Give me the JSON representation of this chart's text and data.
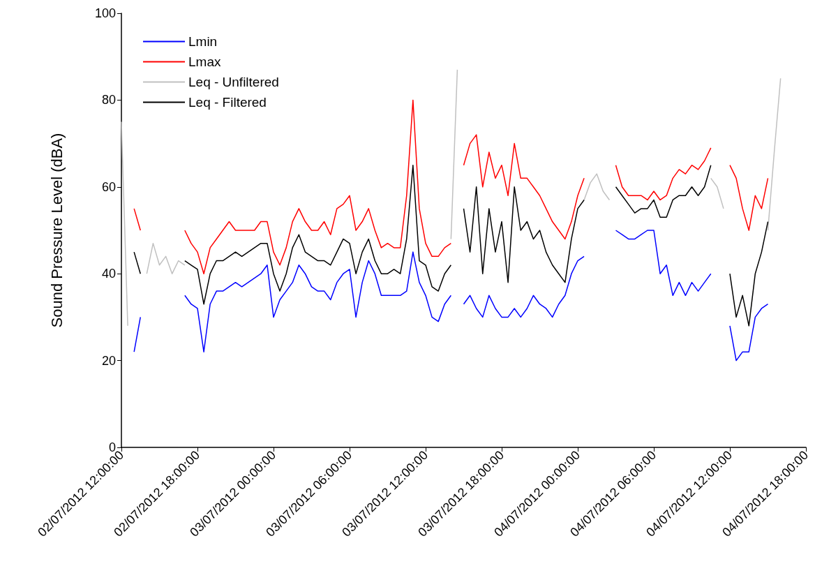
{
  "chart_data": {
    "type": "line",
    "ylabel": "Sound Pressure Level (dBA)",
    "x": [
      "2012-07-02T12:00",
      "2012-07-02T12:30",
      "2012-07-02T13:00",
      "2012-07-02T13:30",
      "2012-07-02T14:00",
      "2012-07-02T14:30",
      "2012-07-02T15:00",
      "2012-07-02T15:30",
      "2012-07-02T16:00",
      "2012-07-02T16:30",
      "2012-07-02T17:00",
      "2012-07-02T17:30",
      "2012-07-02T18:00",
      "2012-07-02T18:30",
      "2012-07-02T19:00",
      "2012-07-02T19:30",
      "2012-07-02T20:00",
      "2012-07-02T20:30",
      "2012-07-02T21:00",
      "2012-07-02T21:30",
      "2012-07-02T22:00",
      "2012-07-02T22:30",
      "2012-07-02T23:00",
      "2012-07-02T23:30",
      "2012-07-03T00:00",
      "2012-07-03T00:30",
      "2012-07-03T01:00",
      "2012-07-03T01:30",
      "2012-07-03T02:00",
      "2012-07-03T02:30",
      "2012-07-03T03:00",
      "2012-07-03T03:30",
      "2012-07-03T04:00",
      "2012-07-03T04:30",
      "2012-07-03T05:00",
      "2012-07-03T05:30",
      "2012-07-03T06:00",
      "2012-07-03T06:30",
      "2012-07-03T07:00",
      "2012-07-03T07:30",
      "2012-07-03T08:00",
      "2012-07-03T08:30",
      "2012-07-03T09:00",
      "2012-07-03T09:30",
      "2012-07-03T10:00",
      "2012-07-03T10:30",
      "2012-07-03T11:00",
      "2012-07-03T11:30",
      "2012-07-03T12:00",
      "2012-07-03T12:30",
      "2012-07-03T13:00",
      "2012-07-03T13:30",
      "2012-07-03T14:00",
      "2012-07-03T14:30",
      "2012-07-03T15:00",
      "2012-07-03T15:30",
      "2012-07-03T16:00",
      "2012-07-03T16:30",
      "2012-07-03T17:00",
      "2012-07-03T17:30",
      "2012-07-03T18:00",
      "2012-07-03T18:30",
      "2012-07-03T19:00",
      "2012-07-03T19:30",
      "2012-07-03T20:00",
      "2012-07-03T20:30",
      "2012-07-03T21:00",
      "2012-07-03T21:30",
      "2012-07-03T22:00",
      "2012-07-03T22:30",
      "2012-07-03T23:00",
      "2012-07-03T23:30",
      "2012-07-04T00:00",
      "2012-07-04T00:30",
      "2012-07-04T01:00",
      "2012-07-04T01:30",
      "2012-07-04T02:00",
      "2012-07-04T02:30",
      "2012-07-04T03:00",
      "2012-07-04T03:30",
      "2012-07-04T04:00",
      "2012-07-04T04:30",
      "2012-07-04T05:00",
      "2012-07-04T05:30",
      "2012-07-04T06:00",
      "2012-07-04T06:30",
      "2012-07-04T07:00",
      "2012-07-04T07:30",
      "2012-07-04T08:00",
      "2012-07-04T08:30",
      "2012-07-04T09:00",
      "2012-07-04T09:30",
      "2012-07-04T10:00",
      "2012-07-04T10:30",
      "2012-07-04T11:00",
      "2012-07-04T11:30",
      "2012-07-04T12:00",
      "2012-07-04T12:30",
      "2012-07-04T13:00",
      "2012-07-04T13:30",
      "2012-07-04T14:00",
      "2012-07-04T14:30",
      "2012-07-04T15:00",
      "2012-07-04T15:30",
      "2012-07-04T16:00"
    ],
    "series": [
      {
        "name": "Lmin",
        "color": "#0000ff",
        "values": [
          null,
          null,
          22,
          30,
          null,
          null,
          null,
          null,
          null,
          null,
          35,
          33,
          32,
          22,
          33,
          36,
          36,
          37,
          38,
          37,
          38,
          39,
          40,
          42,
          30,
          34,
          36,
          38,
          42,
          40,
          37,
          36,
          36,
          34,
          38,
          40,
          41,
          30,
          38,
          43,
          40,
          35,
          35,
          35,
          35,
          36,
          45,
          38,
          35,
          30,
          29,
          33,
          35,
          null,
          33,
          35,
          32,
          30,
          35,
          32,
          30,
          30,
          32,
          30,
          32,
          35,
          33,
          32,
          30,
          33,
          35,
          40,
          43,
          44,
          null,
          null,
          null,
          null,
          50,
          49,
          48,
          48,
          49,
          50,
          50,
          40,
          42,
          35,
          38,
          35,
          38,
          36,
          38,
          40,
          null,
          null,
          28,
          20,
          22,
          22,
          30,
          32,
          33,
          null,
          null
        ]
      },
      {
        "name": "Lmax",
        "color": "#ff0000",
        "values": [
          null,
          null,
          55,
          50,
          null,
          null,
          null,
          null,
          null,
          null,
          50,
          47,
          45,
          40,
          46,
          48,
          50,
          52,
          50,
          50,
          50,
          50,
          52,
          52,
          45,
          42,
          46,
          52,
          55,
          52,
          50,
          50,
          52,
          49,
          55,
          56,
          58,
          50,
          52,
          55,
          50,
          46,
          47,
          46,
          46,
          58,
          80,
          55,
          47,
          44,
          44,
          46,
          47,
          null,
          65,
          70,
          72,
          60,
          68,
          62,
          65,
          58,
          70,
          62,
          62,
          60,
          58,
          55,
          52,
          50,
          48,
          52,
          58,
          62,
          null,
          null,
          null,
          null,
          65,
          60,
          58,
          58,
          58,
          57,
          59,
          57,
          58,
          62,
          64,
          63,
          65,
          64,
          66,
          69,
          null,
          null,
          65,
          62,
          55,
          50,
          58,
          55,
          62,
          null,
          null
        ]
      },
      {
        "name": "Leq - Unfiltered",
        "color": "#c0c0c0",
        "values": [
          75,
          28,
          null,
          null,
          40,
          47,
          42,
          44,
          40,
          43,
          42,
          null,
          null,
          null,
          null,
          null,
          null,
          null,
          null,
          null,
          null,
          null,
          null,
          null,
          null,
          null,
          null,
          null,
          null,
          null,
          null,
          null,
          null,
          null,
          null,
          null,
          null,
          null,
          null,
          null,
          null,
          null,
          null,
          null,
          null,
          null,
          null,
          null,
          null,
          null,
          null,
          null,
          48,
          87,
          null,
          null,
          null,
          null,
          null,
          null,
          null,
          null,
          null,
          null,
          null,
          null,
          null,
          null,
          null,
          null,
          null,
          null,
          null,
          57,
          61,
          63,
          59,
          57,
          null,
          null,
          null,
          null,
          null,
          null,
          null,
          null,
          null,
          null,
          null,
          null,
          null,
          null,
          null,
          62,
          60,
          55,
          null,
          null,
          null,
          null,
          null,
          null,
          50,
          68,
          85
        ]
      },
      {
        "name": "Leq - Filtered",
        "color": "#000000",
        "values": [
          null,
          null,
          45,
          40,
          null,
          null,
          null,
          null,
          null,
          null,
          43,
          42,
          41,
          33,
          40,
          43,
          43,
          44,
          45,
          44,
          45,
          46,
          47,
          47,
          40,
          36,
          40,
          46,
          49,
          45,
          44,
          43,
          43,
          42,
          45,
          48,
          47,
          40,
          45,
          48,
          43,
          40,
          40,
          41,
          40,
          48,
          65,
          43,
          42,
          37,
          36,
          40,
          42,
          null,
          55,
          45,
          60,
          40,
          55,
          45,
          52,
          38,
          60,
          50,
          52,
          48,
          50,
          45,
          42,
          40,
          38,
          48,
          55,
          57,
          null,
          null,
          null,
          null,
          60,
          58,
          56,
          54,
          55,
          55,
          57,
          53,
          53,
          57,
          58,
          58,
          60,
          58,
          60,
          65,
          null,
          null,
          40,
          30,
          35,
          28,
          40,
          45,
          52,
          null,
          null
        ]
      }
    ],
    "xlim": [
      "2012-07-02T12:00",
      "2012-07-04T18:00"
    ],
    "xticks": [
      {
        "value": "2012-07-02T12:00",
        "label": "02/07/2012 12:00:00"
      },
      {
        "value": "2012-07-02T18:00",
        "label": "02/07/2012 18:00:00"
      },
      {
        "value": "2012-07-03T00:00",
        "label": "03/07/2012 00:00:00"
      },
      {
        "value": "2012-07-03T06:00",
        "label": "03/07/2012 06:00:00"
      },
      {
        "value": "2012-07-03T12:00",
        "label": "03/07/2012 12:00:00"
      },
      {
        "value": "2012-07-03T18:00",
        "label": "03/07/2012 18:00:00"
      },
      {
        "value": "2012-07-04T00:00",
        "label": "04/07/2012 00:00:00"
      },
      {
        "value": "2012-07-04T06:00",
        "label": "04/07/2012 06:00:00"
      },
      {
        "value": "2012-07-04T12:00",
        "label": "04/07/2012 12:00:00"
      },
      {
        "value": "2012-07-04T18:00",
        "label": "04/07/2012 18:00:00"
      }
    ],
    "ylim": [
      0,
      100
    ],
    "yticks": [
      0,
      20,
      40,
      60,
      80,
      100
    ],
    "grid": false,
    "legend": "top left",
    "marker": "none",
    "line_style": "solid"
  }
}
